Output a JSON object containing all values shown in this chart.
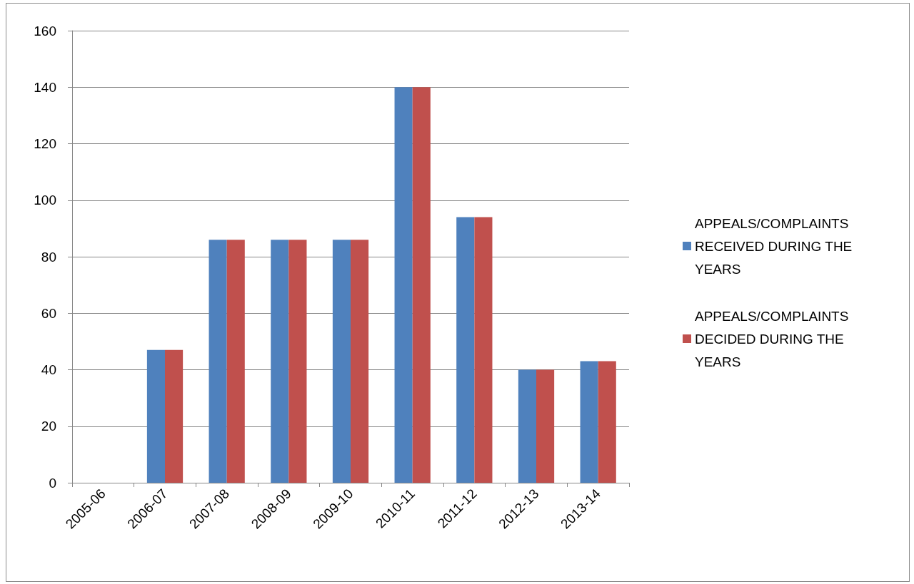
{
  "chart_data": {
    "type": "bar",
    "categories": [
      "2005-06",
      "2006-07",
      "2007-08",
      "2008-09",
      "2009-10",
      "2010-11",
      "2011-12",
      "2012-13",
      "2013-14"
    ],
    "series": [
      {
        "name": "APPEALS/COMPLAINTS RECEIVED DURING THE YEARS",
        "color": "#4f81bd",
        "values": [
          0,
          47,
          86,
          86,
          86,
          140,
          94,
          40,
          43
        ]
      },
      {
        "name": "APPEALS/COMPLAINTS DECIDED DURING THE YEARS",
        "color": "#c0504d",
        "values": [
          0,
          47,
          86,
          86,
          86,
          140,
          94,
          40,
          43
        ]
      }
    ],
    "ylim": [
      0,
      160
    ],
    "yticks": [
      0,
      20,
      40,
      60,
      80,
      100,
      120,
      140,
      160
    ],
    "grid": "y",
    "legend": "right"
  }
}
